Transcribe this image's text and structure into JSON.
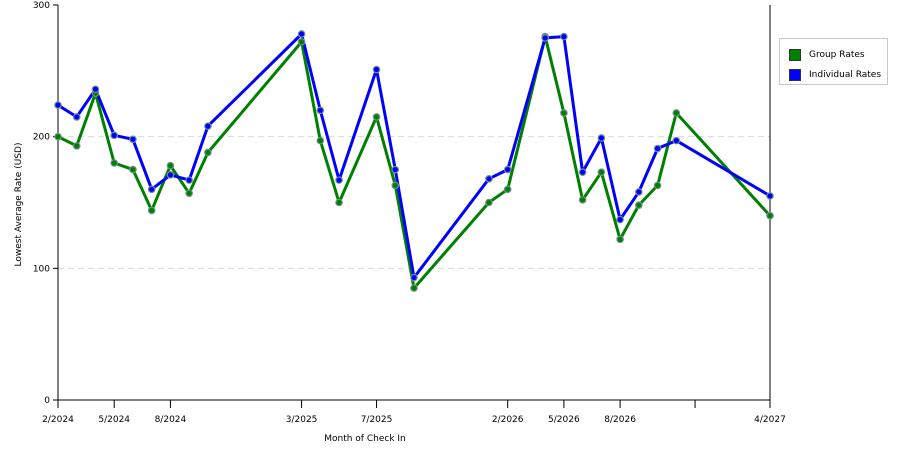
{
  "chart_data": {
    "type": "line",
    "xlabel": "Month of Check In",
    "ylabel": "Lowest Average Rate (USD)",
    "ylim": [
      0,
      300
    ],
    "yticks": [
      0,
      100,
      200,
      300
    ],
    "grid": true,
    "legend_position": "top-right",
    "x": [
      "2/2024",
      "3/2024",
      "4/2024",
      "5/2024",
      "6/2024",
      "7/2024",
      "8/2024",
      "9/2024",
      "10/2024",
      "11/2024",
      "12/2024",
      "1/2025",
      "2/2025",
      "3/2025",
      "4/2025",
      "5/2025",
      "6/2025",
      "7/2025",
      "8/2025",
      "9/2025",
      "10/2025",
      "11/2025",
      "12/2025",
      "1/2026",
      "2/2026",
      "3/2026",
      "4/2026",
      "5/2026",
      "6/2026",
      "7/2026",
      "8/2026",
      "9/2026",
      "10/2026",
      "11/2026",
      "12/2026",
      "1/2027",
      "2/2027",
      "3/2027",
      "4/2027"
    ],
    "x_tick_labels": [
      "2/2024",
      "5/2024",
      "8/2024",
      "3/2025",
      "7/2025",
      "2/2026",
      "5/2026",
      "8/2026",
      "4/2027"
    ],
    "series": [
      {
        "name": "Group Rates",
        "color": "#008000",
        "points": [
          [
            "2/2024",
            200
          ],
          [
            "3/2024",
            193
          ],
          [
            "4/2024",
            233
          ],
          [
            "5/2024",
            180
          ],
          [
            "6/2024",
            175
          ],
          [
            "7/2024",
            144
          ],
          [
            "8/2024",
            178
          ],
          [
            "9/2024",
            157
          ],
          [
            "10/2024",
            188
          ],
          [
            "3/2025",
            272
          ],
          [
            "4/2025",
            197
          ],
          [
            "5/2025",
            150
          ],
          [
            "7/2025",
            215
          ],
          [
            "8/2025",
            163
          ],
          [
            "9/2025",
            85
          ],
          [
            "1/2026",
            150
          ],
          [
            "2/2026",
            160
          ],
          [
            "4/2026",
            276
          ],
          [
            "5/2026",
            218
          ],
          [
            "6/2026",
            152
          ],
          [
            "7/2026",
            173
          ],
          [
            "8/2026",
            122
          ],
          [
            "9/2026",
            148
          ],
          [
            "10/2026",
            163
          ],
          [
            "11/2026",
            218
          ],
          [
            "4/2027",
            140
          ]
        ]
      },
      {
        "name": "Individual Rates",
        "color": "#0000ff",
        "points": [
          [
            "2/2024",
            224
          ],
          [
            "3/2024",
            215
          ],
          [
            "4/2024",
            236
          ],
          [
            "5/2024",
            201
          ],
          [
            "6/2024",
            198
          ],
          [
            "7/2024",
            160
          ],
          [
            "8/2024",
            171
          ],
          [
            "9/2024",
            167
          ],
          [
            "10/2024",
            208
          ],
          [
            "3/2025",
            278
          ],
          [
            "4/2025",
            220
          ],
          [
            "5/2025",
            167
          ],
          [
            "7/2025",
            251
          ],
          [
            "8/2025",
            175
          ],
          [
            "9/2025",
            93
          ],
          [
            "1/2026",
            168
          ],
          [
            "2/2026",
            175
          ],
          [
            "4/2026",
            275
          ],
          [
            "5/2026",
            276
          ],
          [
            "6/2026",
            173
          ],
          [
            "7/2026",
            199
          ],
          [
            "8/2026",
            137
          ],
          [
            "9/2026",
            158
          ],
          [
            "10/2026",
            191
          ],
          [
            "11/2026",
            197
          ],
          [
            "4/2027",
            155
          ]
        ]
      }
    ]
  }
}
